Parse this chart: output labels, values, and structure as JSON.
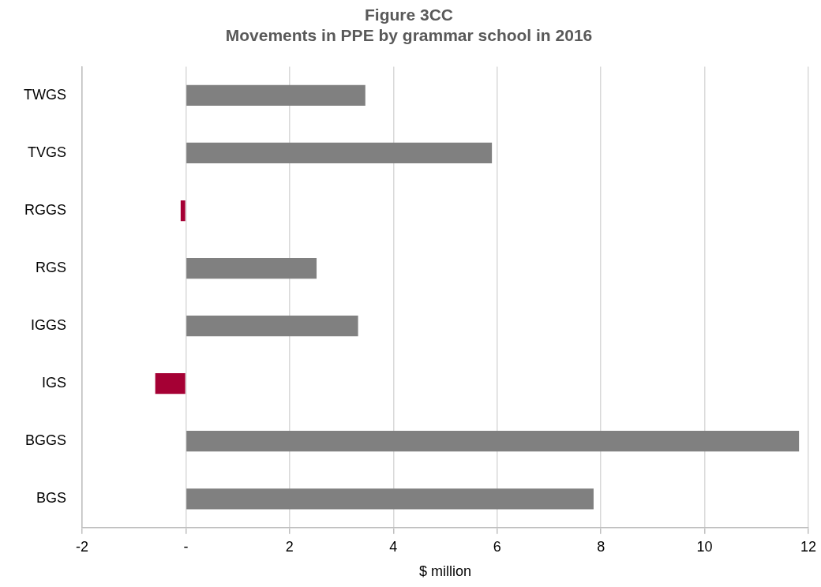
{
  "chart_data": {
    "type": "bar",
    "orientation": "horizontal",
    "title": "Figure 3CC\nMovements in PPE by grammar school in 2016",
    "xlabel": "$ million",
    "categories": [
      "TWGS",
      "TVGS",
      "RGGS",
      "RGS",
      "IGGS",
      "IGS",
      "BGGS",
      "BGS"
    ],
    "values": [
      3.46,
      5.9,
      -0.1,
      2.52,
      3.32,
      -0.59,
      11.82,
      7.86
    ],
    "colors": [
      "#808080",
      "#808080",
      "#a50034",
      "#808080",
      "#808080",
      "#a50034",
      "#808080",
      "#808080"
    ],
    "xlim": [
      -2,
      12
    ],
    "xticks": [
      -2,
      {
        "value": 0,
        "label": "-"
      },
      2,
      4,
      6,
      8,
      10,
      12
    ],
    "grid": "x",
    "legend": false
  }
}
